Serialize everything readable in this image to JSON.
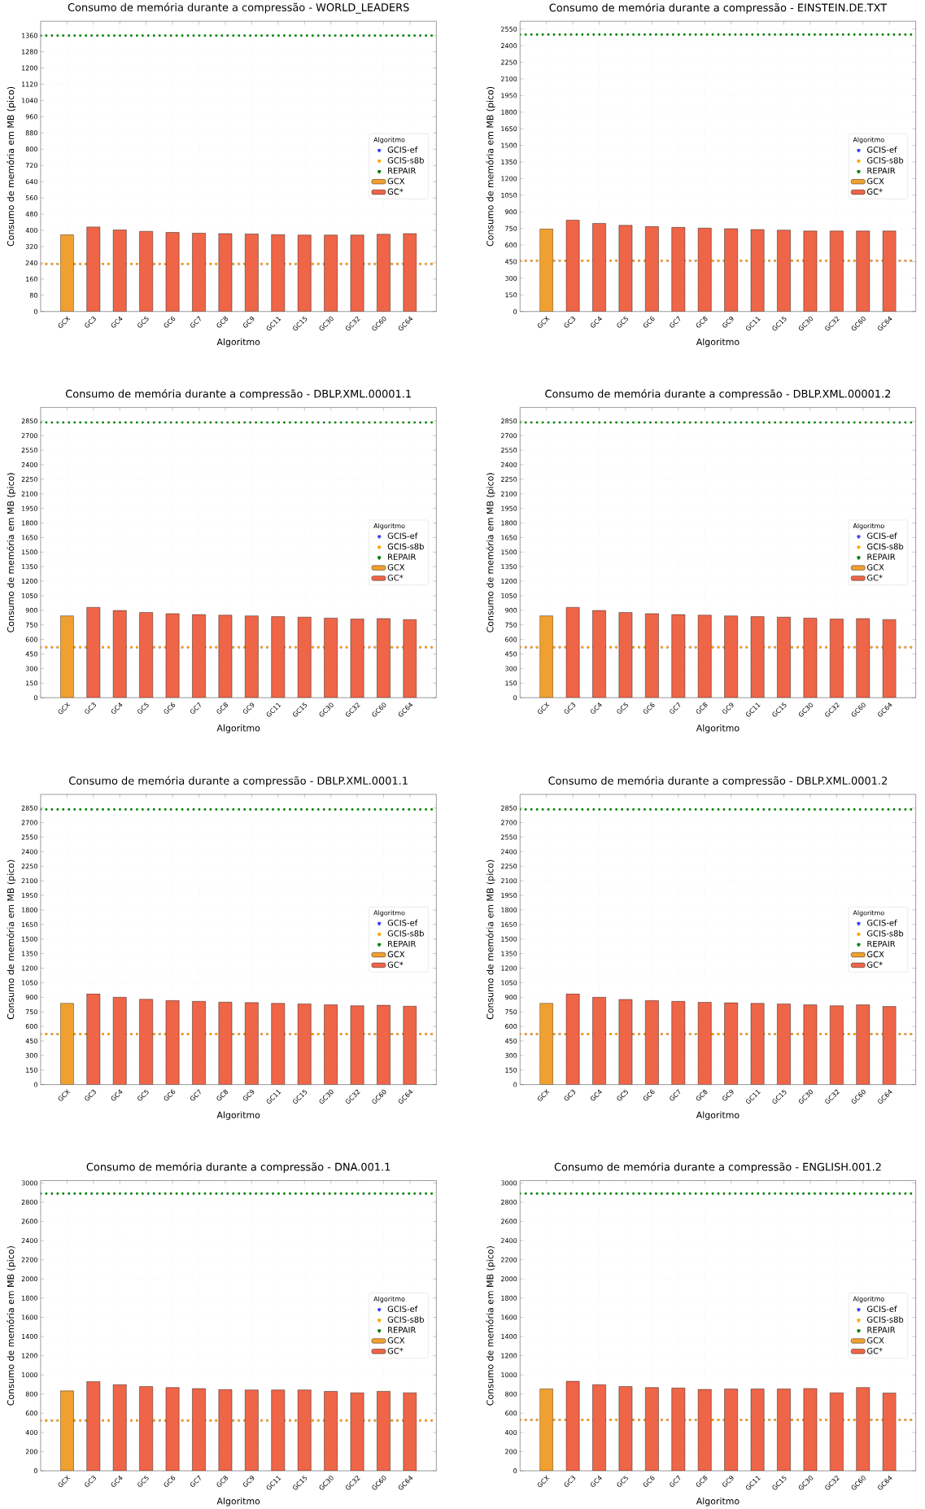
{
  "chart_data": [
    {
      "type": "bar",
      "title": "Consumo de memória durante a compressão -  WORLD_LEADERS",
      "xlabel": "Algoritmo",
      "ylabel": "Consumo de memória em MB (pico)",
      "legend_title": "Algoritmo",
      "legend": "right",
      "grid": true,
      "categories": [
        "GCX",
        "GC3",
        "GC4",
        "GC5",
        "GC6",
        "GC7",
        "GC8",
        "GC9",
        "GC11",
        "GC15",
        "GC30",
        "GC32",
        "GC60",
        "GC64"
      ],
      "series": [
        {
          "name": "GCX",
          "color": "#f0a030",
          "values": [
            378,
            null,
            null,
            null,
            null,
            null,
            null,
            null,
            null,
            null,
            null,
            null,
            null,
            null
          ]
        },
        {
          "name": "GC*",
          "color": "#ee6548",
          "values": [
            null,
            417,
            402,
            395,
            390,
            386,
            384,
            382,
            379,
            377,
            377,
            377,
            381,
            384
          ]
        }
      ],
      "ref_lines": [
        {
          "axis": "y",
          "value": 235,
          "label": "GCIS-ef",
          "color": "#4040ff",
          "line_style": "dotted"
        },
        {
          "axis": "y",
          "value": 235,
          "label": "GCIS-s8b",
          "color": "#ffa500",
          "line_style": "dotted"
        },
        {
          "axis": "y",
          "value": 1360,
          "label": "REPAIR",
          "color": "#008000",
          "line_style": "dotted"
        }
      ],
      "ylim": [
        0,
        1430
      ],
      "yticks": [
        0,
        80,
        160,
        240,
        320,
        400,
        480,
        560,
        640,
        720,
        800,
        880,
        960,
        1040,
        1120,
        1200,
        1280,
        1360
      ]
    },
    {
      "type": "bar",
      "title": "Consumo de memória durante a compressão -  EINSTEIN.DE.TXT",
      "xlabel": "Algoritmo",
      "ylabel": "Consumo de memória em MB (pico)",
      "legend_title": "Algoritmo",
      "legend": "right",
      "grid": true,
      "categories": [
        "GCX",
        "GC3",
        "GC4",
        "GC5",
        "GC6",
        "GC7",
        "GC8",
        "GC9",
        "GC11",
        "GC15",
        "GC30",
        "GC32",
        "GC60",
        "GC64"
      ],
      "series": [
        {
          "name": "GCX",
          "color": "#f0a030",
          "values": [
            745,
            null,
            null,
            null,
            null,
            null,
            null,
            null,
            null,
            null,
            null,
            null,
            null,
            null
          ]
        },
        {
          "name": "GC*",
          "color": "#ee6548",
          "values": [
            null,
            825,
            795,
            778,
            767,
            760,
            753,
            748,
            740,
            735,
            727,
            727,
            727,
            727
          ]
        }
      ],
      "ref_lines": [
        {
          "axis": "y",
          "value": 460,
          "label": "GCIS-ef",
          "color": "#4040ff",
          "line_style": "dotted"
        },
        {
          "axis": "y",
          "value": 460,
          "label": "GCIS-s8b",
          "color": "#ffa500",
          "line_style": "dotted"
        },
        {
          "axis": "y",
          "value": 2500,
          "label": "REPAIR",
          "color": "#008000",
          "line_style": "dotted"
        }
      ],
      "ylim": [
        0,
        2620
      ],
      "yticks": [
        0,
        150,
        300,
        450,
        600,
        750,
        900,
        1050,
        1200,
        1350,
        1500,
        1650,
        1800,
        1950,
        2100,
        2250,
        2400,
        2550
      ]
    },
    {
      "type": "bar",
      "title": "Consumo de memória durante a compressão -  DBLP.XML.00001.1",
      "xlabel": "Algoritmo",
      "ylabel": "Consumo de memória em MB (pico)",
      "legend_title": "Algoritmo",
      "legend": "right",
      "grid": true,
      "categories": [
        "GCX",
        "GC3",
        "GC4",
        "GC5",
        "GC6",
        "GC7",
        "GC8",
        "GC9",
        "GC11",
        "GC15",
        "GC30",
        "GC32",
        "GC60",
        "GC64"
      ],
      "series": [
        {
          "name": "GCX",
          "color": "#f0a030",
          "values": [
            843,
            null,
            null,
            null,
            null,
            null,
            null,
            null,
            null,
            null,
            null,
            null,
            null,
            null
          ]
        },
        {
          "name": "GC*",
          "color": "#ee6548",
          "values": [
            null,
            930,
            898,
            878,
            866,
            856,
            850,
            843,
            835,
            830,
            820,
            810,
            815,
            805
          ]
        }
      ],
      "ref_lines": [
        {
          "axis": "y",
          "value": 520,
          "label": "GCIS-ef",
          "color": "#4040ff",
          "line_style": "dotted"
        },
        {
          "axis": "y",
          "value": 520,
          "label": "GCIS-s8b",
          "color": "#ffa500",
          "line_style": "dotted"
        },
        {
          "axis": "y",
          "value": 2835,
          "label": "REPAIR",
          "color": "#008000",
          "line_style": "dotted"
        }
      ],
      "ylim": [
        0,
        2990
      ],
      "yticks": [
        0,
        150,
        300,
        450,
        600,
        750,
        900,
        1050,
        1200,
        1350,
        1500,
        1650,
        1800,
        1950,
        2100,
        2250,
        2400,
        2550,
        2700,
        2850
      ]
    },
    {
      "type": "bar",
      "title": "Consumo de memória durante a compressão -  DBLP.XML.00001.2",
      "xlabel": "Algoritmo",
      "ylabel": "Consumo de memória em MB (pico)",
      "legend_title": "Algoritmo",
      "legend": "right",
      "grid": true,
      "categories": [
        "GCX",
        "GC3",
        "GC4",
        "GC5",
        "GC6",
        "GC7",
        "GC8",
        "GC9",
        "GC11",
        "GC15",
        "GC30",
        "GC32",
        "GC60",
        "GC64"
      ],
      "series": [
        {
          "name": "GCX",
          "color": "#f0a030",
          "values": [
            843,
            null,
            null,
            null,
            null,
            null,
            null,
            null,
            null,
            null,
            null,
            null,
            null,
            null
          ]
        },
        {
          "name": "GC*",
          "color": "#ee6548",
          "values": [
            null,
            930,
            898,
            878,
            866,
            856,
            850,
            843,
            835,
            830,
            820,
            810,
            815,
            805
          ]
        }
      ],
      "ref_lines": [
        {
          "axis": "y",
          "value": 520,
          "label": "GCIS-ef",
          "color": "#4040ff",
          "line_style": "dotted"
        },
        {
          "axis": "y",
          "value": 520,
          "label": "GCIS-s8b",
          "color": "#ffa500",
          "line_style": "dotted"
        },
        {
          "axis": "y",
          "value": 2835,
          "label": "REPAIR",
          "color": "#008000",
          "line_style": "dotted"
        }
      ],
      "ylim": [
        0,
        2990
      ],
      "yticks": [
        0,
        150,
        300,
        450,
        600,
        750,
        900,
        1050,
        1200,
        1350,
        1500,
        1650,
        1800,
        1950,
        2100,
        2250,
        2400,
        2550,
        2700,
        2850
      ]
    },
    {
      "type": "bar",
      "title": "Consumo de memória durante a compressão -  DBLP.XML.0001.1",
      "xlabel": "Algoritmo",
      "ylabel": "Consumo de memória em MB (pico)",
      "legend_title": "Algoritmo",
      "legend": "right",
      "grid": true,
      "categories": [
        "GCX",
        "GC3",
        "GC4",
        "GC5",
        "GC6",
        "GC7",
        "GC8",
        "GC9",
        "GC11",
        "GC15",
        "GC30",
        "GC32",
        "GC60",
        "GC64"
      ],
      "series": [
        {
          "name": "GCX",
          "color": "#f0a030",
          "values": [
            838,
            null,
            null,
            null,
            null,
            null,
            null,
            null,
            null,
            null,
            null,
            null,
            null,
            null
          ]
        },
        {
          "name": "GC*",
          "color": "#ee6548",
          "values": [
            null,
            935,
            900,
            880,
            866,
            858,
            850,
            845,
            838,
            832,
            822,
            813,
            818,
            808
          ]
        }
      ],
      "ref_lines": [
        {
          "axis": "y",
          "value": 520,
          "label": "GCIS-ef",
          "color": "#4040ff",
          "line_style": "dotted"
        },
        {
          "axis": "y",
          "value": 520,
          "label": "GCIS-s8b",
          "color": "#ffa500",
          "line_style": "dotted"
        },
        {
          "axis": "y",
          "value": 2835,
          "label": "REPAIR",
          "color": "#008000",
          "line_style": "dotted"
        }
      ],
      "ylim": [
        0,
        2990
      ],
      "yticks": [
        0,
        150,
        300,
        450,
        600,
        750,
        900,
        1050,
        1200,
        1350,
        1500,
        1650,
        1800,
        1950,
        2100,
        2250,
        2400,
        2550,
        2700,
        2850
      ]
    },
    {
      "type": "bar",
      "title": "Consumo de memória durante a compressão -  DBLP.XML.0001.2",
      "xlabel": "Algoritmo",
      "ylabel": "Consumo de memória em MB (pico)",
      "legend_title": "Algoritmo",
      "legend": "right",
      "grid": true,
      "categories": [
        "GCX",
        "GC3",
        "GC4",
        "GC5",
        "GC6",
        "GC7",
        "GC8",
        "GC9",
        "GC11",
        "GC15",
        "GC30",
        "GC32",
        "GC60",
        "GC64"
      ],
      "series": [
        {
          "name": "GCX",
          "color": "#f0a030",
          "values": [
            838,
            null,
            null,
            null,
            null,
            null,
            null,
            null,
            null,
            null,
            null,
            null,
            null,
            null
          ]
        },
        {
          "name": "GC*",
          "color": "#ee6548",
          "values": [
            null,
            935,
            900,
            878,
            866,
            858,
            848,
            843,
            838,
            832,
            822,
            813,
            822,
            805
          ]
        }
      ],
      "ref_lines": [
        {
          "axis": "y",
          "value": 520,
          "label": "GCIS-ef",
          "color": "#4040ff",
          "line_style": "dotted"
        },
        {
          "axis": "y",
          "value": 520,
          "label": "GCIS-s8b",
          "color": "#ffa500",
          "line_style": "dotted"
        },
        {
          "axis": "y",
          "value": 2835,
          "label": "REPAIR",
          "color": "#008000",
          "line_style": "dotted"
        }
      ],
      "ylim": [
        0,
        2990
      ],
      "yticks": [
        0,
        150,
        300,
        450,
        600,
        750,
        900,
        1050,
        1200,
        1350,
        1500,
        1650,
        1800,
        1950,
        2100,
        2250,
        2400,
        2550,
        2700,
        2850
      ]
    },
    {
      "type": "bar",
      "title": "Consumo de memória durante a compressão -  DNA.001.1",
      "xlabel": "Algoritmo",
      "ylabel": "Consumo de memória em MB (pico)",
      "legend_title": "Algoritmo",
      "legend": "right",
      "grid": true,
      "categories": [
        "GCX",
        "GC3",
        "GC4",
        "GC5",
        "GC6",
        "GC7",
        "GC8",
        "GC9",
        "GC11",
        "GC15",
        "GC30",
        "GC32",
        "GC60",
        "GC64"
      ],
      "series": [
        {
          "name": "GCX",
          "color": "#f0a030",
          "values": [
            833,
            null,
            null,
            null,
            null,
            null,
            null,
            null,
            null,
            null,
            null,
            null,
            null,
            null
          ]
        },
        {
          "name": "GC*",
          "color": "#ee6548",
          "values": [
            null,
            930,
            897,
            878,
            868,
            857,
            847,
            843,
            843,
            843,
            828,
            813,
            828,
            813
          ]
        }
      ],
      "ref_lines": [
        {
          "axis": "y",
          "value": 525,
          "label": "GCIS-ef",
          "color": "#4040ff",
          "line_style": "dotted"
        },
        {
          "axis": "y",
          "value": 525,
          "label": "GCIS-s8b",
          "color": "#ffa500",
          "line_style": "dotted"
        },
        {
          "axis": "y",
          "value": 2890,
          "label": "REPAIR",
          "color": "#008000",
          "line_style": "dotted"
        }
      ],
      "ylim": [
        0,
        3025
      ],
      "yticks": [
        0,
        200,
        400,
        600,
        800,
        1000,
        1200,
        1400,
        1600,
        1800,
        2000,
        2200,
        2400,
        2600,
        2800,
        3000
      ]
    },
    {
      "type": "bar",
      "title": "Consumo de memória durante a compressão -  ENGLISH.001.2",
      "xlabel": "Algoritmo",
      "ylabel": "Consumo de memória em MB (pico)",
      "legend_title": "Algoritmo",
      "legend": "right",
      "grid": true,
      "categories": [
        "GCX",
        "GC3",
        "GC4",
        "GC5",
        "GC6",
        "GC7",
        "GC8",
        "GC9",
        "GC11",
        "GC15",
        "GC30",
        "GC32",
        "GC60",
        "GC64"
      ],
      "series": [
        {
          "name": "GCX",
          "color": "#f0a030",
          "values": [
            853,
            null,
            null,
            null,
            null,
            null,
            null,
            null,
            null,
            null,
            null,
            null,
            null,
            null
          ]
        },
        {
          "name": "GC*",
          "color": "#ee6548",
          "values": [
            null,
            933,
            898,
            878,
            868,
            863,
            848,
            853,
            853,
            853,
            858,
            813,
            868,
            810
          ]
        }
      ],
      "ref_lines": [
        {
          "axis": "y",
          "value": 530,
          "label": "GCIS-ef",
          "color": "#4040ff",
          "line_style": "dotted"
        },
        {
          "axis": "y",
          "value": 530,
          "label": "GCIS-s8b",
          "color": "#ffa500",
          "line_style": "dotted"
        },
        {
          "axis": "y",
          "value": 2890,
          "label": "REPAIR",
          "color": "#008000",
          "line_style": "dotted"
        }
      ],
      "ylim": [
        0,
        3025
      ],
      "yticks": [
        0,
        200,
        400,
        600,
        800,
        1000,
        1200,
        1400,
        1600,
        1800,
        2000,
        2200,
        2400,
        2600,
        2800,
        3000
      ]
    }
  ]
}
